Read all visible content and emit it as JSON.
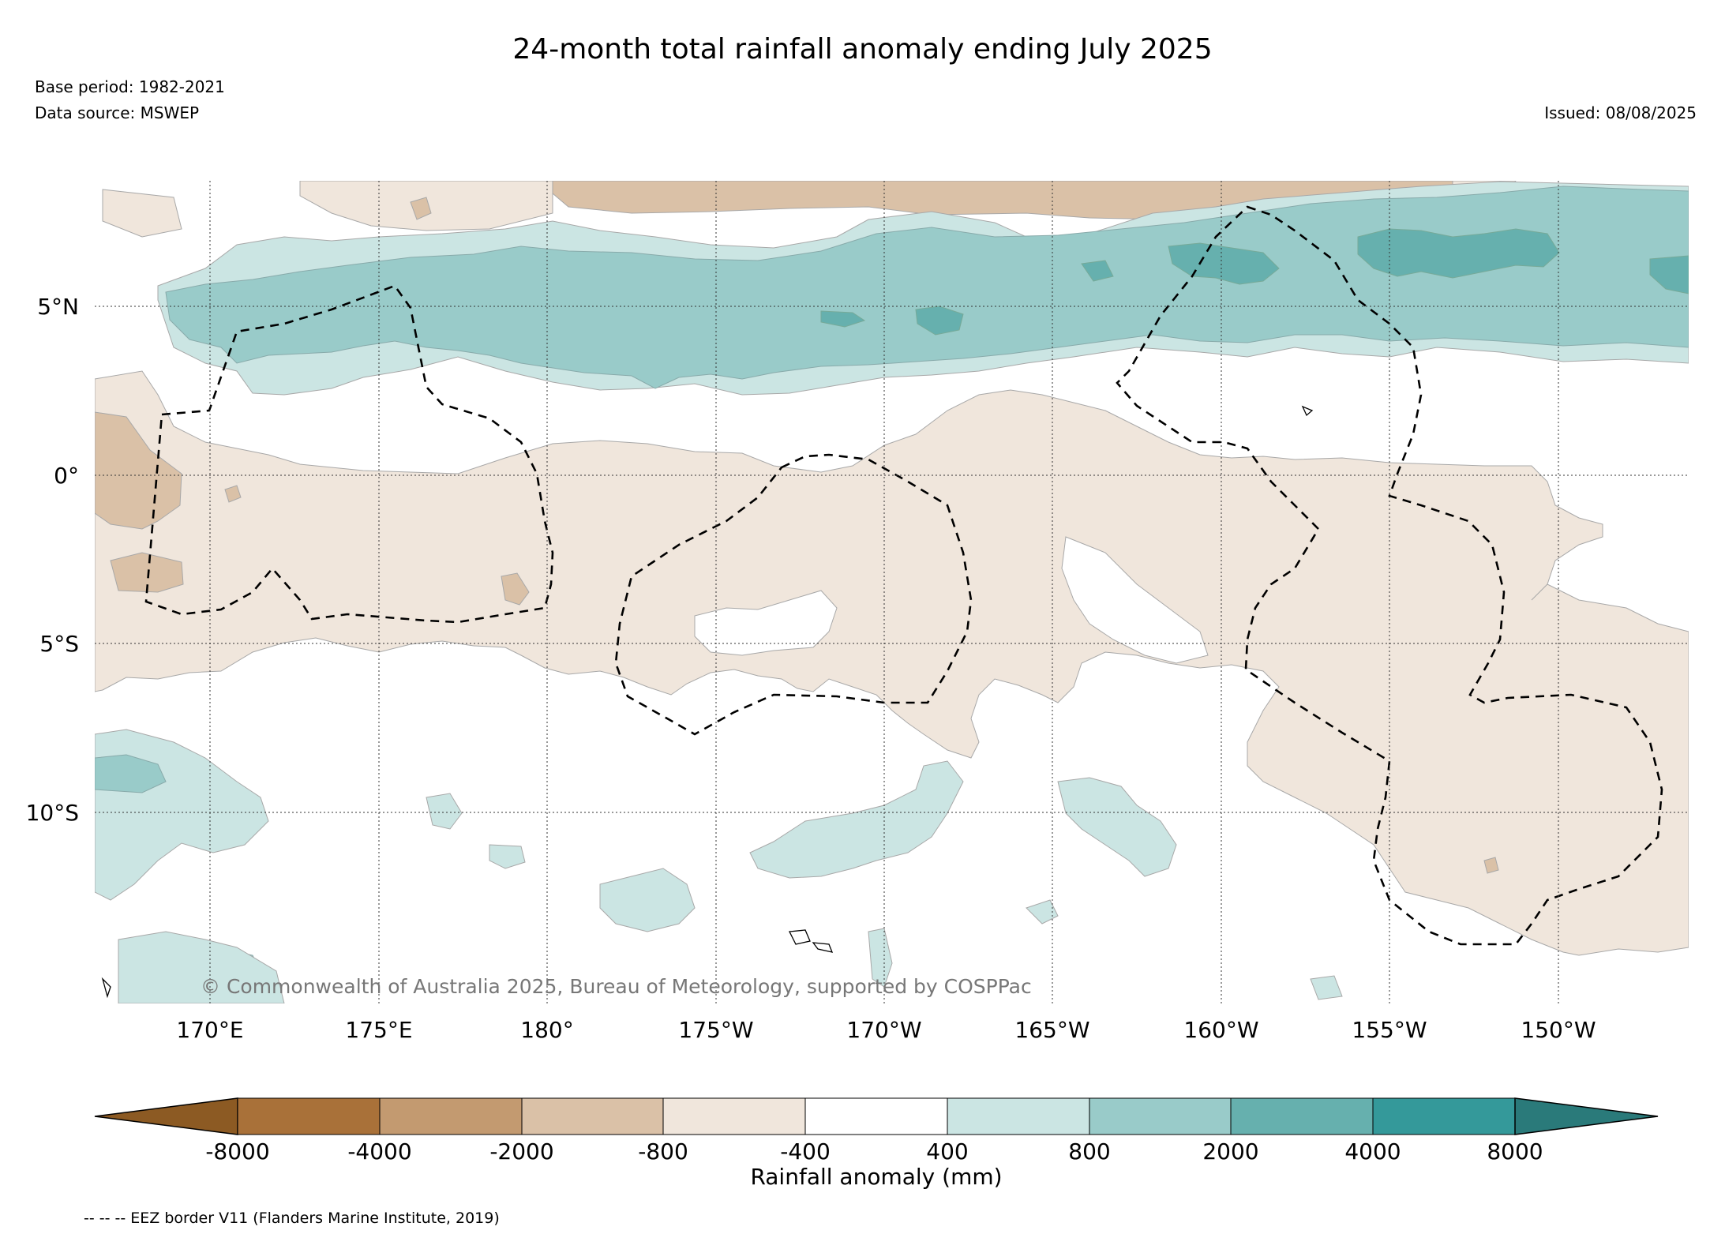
{
  "header": {
    "title": "24-month total rainfall anomaly ending July 2025",
    "base_period": "Base period: 1982-2021",
    "data_source": "Data source: MSWEP",
    "issued": "Issued: 08/08/2025"
  },
  "map": {
    "lat_labels": [
      "5°N",
      "0°",
      "5°S",
      "10°S"
    ],
    "lon_labels": [
      "170°E",
      "175°E",
      "180°",
      "175°W",
      "170°W",
      "165°W",
      "160°W",
      "155°W",
      "150°W"
    ],
    "copyright": "© Commonwealth of Australia 2025, Bureau of Meteorology, supported by COSPPac"
  },
  "colorbar": {
    "title": "Rainfall anomaly (mm)",
    "tick_labels": [
      "-8000",
      "-4000",
      "-2000",
      "-800",
      "-400",
      "400",
      "800",
      "2000",
      "4000",
      "8000"
    ],
    "colors": {
      "below_min": "#8c5a23",
      "lt_-4000": "#a97139",
      "lt_-2000": "#c39a70",
      "lt_-800": "#dac1a7",
      "lt_-400": "#f0e6dc",
      "neutral": "#ffffff",
      "gt_400": "#cbe5e3",
      "gt_800": "#99cbc9",
      "gt_2000": "#66b0ae",
      "gt_4000": "#34999a",
      "above_max": "#2a7a7a"
    }
  },
  "legend_note": "-- -- -- EEZ border V11 (Flanders Marine Institute, 2019)"
}
